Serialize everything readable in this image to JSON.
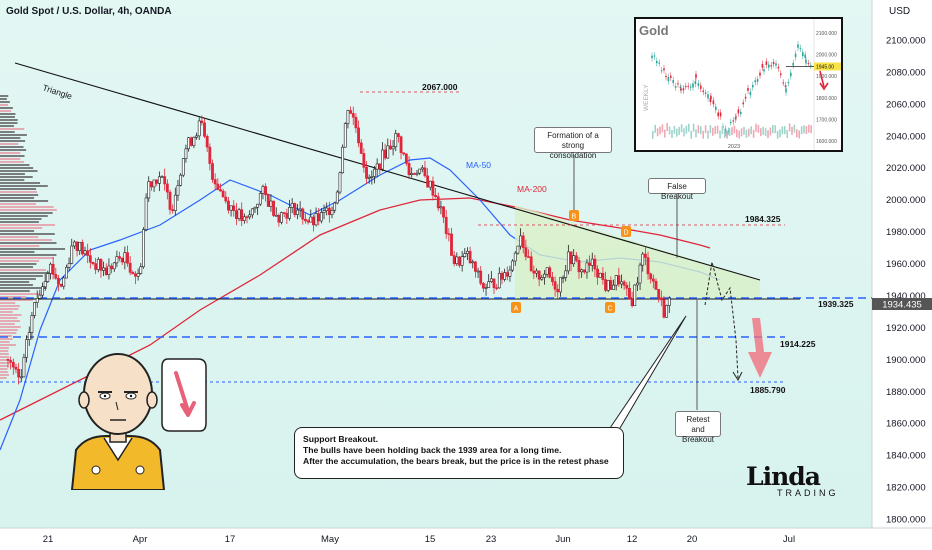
{
  "header": {
    "title": "Gold Spot / U.S. Dollar, 4h, OANDA",
    "currency": "USD"
  },
  "price_tags": {
    "current": "1934.435"
  },
  "chart_data": [
    {
      "type": "line",
      "title": "Gold Spot / U.S. Dollar, 4h, OANDA",
      "y_unit": "USD",
      "ylim": [
        1795,
        2118
      ],
      "yticks": [
        2100,
        2080,
        2060,
        2040,
        2020,
        2000,
        1980,
        1960,
        1940,
        1920,
        1900,
        1880,
        1860,
        1840,
        1820,
        1800
      ],
      "ytick_labels": [
        "2100.000",
        "2080.000",
        "2060.000",
        "2040.000",
        "2020.000",
        "2000.000",
        "1980.000",
        "1960.000",
        "1940.000",
        "1920.000",
        "1900.000",
        "1880.000",
        "1860.000",
        "1840.000",
        "1820.000",
        "1800.000"
      ],
      "xticks": [
        "21",
        "Apr",
        "17",
        "May",
        "15",
        "23",
        "Jun",
        "12",
        "20",
        "Jul"
      ],
      "levels": [
        {
          "label": "2067.000",
          "value": 2067
        },
        {
          "label": "1984.325",
          "value": 1984.325
        },
        {
          "label": "1939.325",
          "value": 1939.325
        },
        {
          "label": "1914.225",
          "value": 1914.225
        },
        {
          "label": "1885.790",
          "value": 1885.79
        }
      ],
      "last_price": 1934.435,
      "series": [
        {
          "name": "MA-50",
          "color": "#2962ff"
        },
        {
          "name": "MA-200",
          "color": "#e0263a"
        }
      ],
      "price_path": [
        [
          0,
          1900
        ],
        [
          0.015,
          1885
        ],
        [
          0.03,
          1930
        ],
        [
          0.05,
          1960
        ],
        [
          0.065,
          1945
        ],
        [
          0.08,
          1975
        ],
        [
          0.1,
          1962
        ],
        [
          0.12,
          1955
        ],
        [
          0.14,
          1965
        ],
        [
          0.16,
          1950
        ],
        [
          0.17,
          2010
        ],
        [
          0.185,
          2015
        ],
        [
          0.2,
          1995
        ],
        [
          0.215,
          2030
        ],
        [
          0.235,
          2048
        ],
        [
          0.25,
          2015
        ],
        [
          0.265,
          2000
        ],
        [
          0.29,
          1985
        ],
        [
          0.31,
          2005
        ],
        [
          0.33,
          1990
        ],
        [
          0.35,
          1995
        ],
        [
          0.37,
          1985
        ],
        [
          0.385,
          1990
        ],
        [
          0.4,
          2000
        ],
        [
          0.415,
          2060
        ],
        [
          0.425,
          2045
        ],
        [
          0.44,
          2010
        ],
        [
          0.46,
          2030
        ],
        [
          0.475,
          2040
        ],
        [
          0.49,
          2015
        ],
        [
          0.5,
          2020
        ],
        [
          0.52,
          2005
        ],
        [
          0.53,
          1990
        ],
        [
          0.545,
          1960
        ],
        [
          0.56,
          1965
        ],
        [
          0.58,
          1945
        ],
        [
          0.6,
          1950
        ],
        [
          0.615,
          1960
        ],
        [
          0.625,
          1980
        ],
        [
          0.64,
          1950
        ],
        [
          0.655,
          1955
        ],
        [
          0.67,
          1945
        ],
        [
          0.685,
          1965
        ],
        [
          0.7,
          1955
        ],
        [
          0.715,
          1960
        ],
        [
          0.73,
          1945
        ],
        [
          0.745,
          1950
        ],
        [
          0.76,
          1935
        ],
        [
          0.775,
          1965
        ],
        [
          0.79,
          1945
        ],
        [
          0.8,
          1930
        ],
        [
          0.81,
          1938
        ]
      ]
    },
    {
      "type": "line",
      "title": "Gold",
      "xlabel": "2023",
      "ylabel": "WEEKLY",
      "yticks": [
        2100,
        2000,
        1900,
        1800,
        1700,
        1600
      ],
      "ytick_labels": [
        "2100.000",
        "2000.000",
        "1900.000",
        "1800.000",
        "1700.000",
        "1600.000"
      ],
      "last_price_label": "1945.00"
    }
  ],
  "annotations": {
    "triangle": "Triangle",
    "consolidation": "Formation of a strong consolidation",
    "false_breakout": "False Breakout",
    "retest": "Retest and Breakout",
    "points": [
      "A",
      "B",
      "C",
      "D"
    ]
  },
  "callout": {
    "lines": [
      "Support Breakout.",
      "The bulls have been holding back the 1939 area for a long time.",
      "After the accumulation, the bears break, but the price is in the retest phase"
    ]
  },
  "logo": {
    "big": "Linda",
    "small": "TRADING"
  },
  "colors": {
    "bull": "#26a69a",
    "bear": "#e0263a",
    "bg": "#dff5f1",
    "ma50": "#2962ff",
    "ma200": "#e0263a",
    "dashed_blue": "#2962ff",
    "dashed_red": "#e0263a",
    "label_orange": "#f7931a"
  }
}
